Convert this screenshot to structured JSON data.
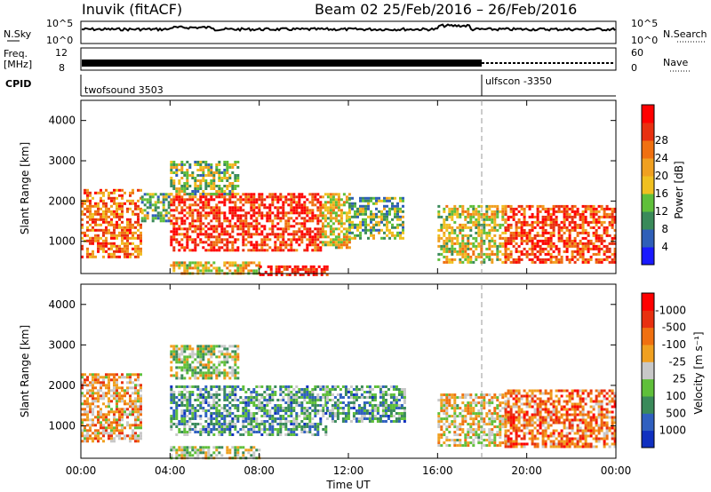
{
  "header": {
    "station": "Inuvik (fitACF)",
    "beam_date": "Beam 02   25/Feb/2016 – 26/Feb/2016"
  },
  "top_panels": {
    "noise": {
      "left_label": "N.Sky",
      "left_ticks": [
        "10^5",
        "10^0"
      ],
      "right_ticks": [
        "10^5",
        "10^0"
      ],
      "right_label": "N.Search"
    },
    "freq": {
      "left_label_line1": "Freq.",
      "left_label_line2": "[MHz]",
      "left_ticks": [
        "12",
        "8"
      ],
      "right_ticks": [
        "60",
        "0"
      ],
      "right_label": "Nave"
    },
    "cpid": {
      "label": "CPID",
      "programs": [
        {
          "name": "twofsound 3503",
          "start_hour": 0
        },
        {
          "name": "ulfscon -3350",
          "start_hour": 18
        }
      ]
    }
  },
  "axes": {
    "x_ticks": [
      "00:00",
      "04:00",
      "08:00",
      "12:00",
      "16:00",
      "20:00",
      "00:00"
    ],
    "x_tick_hours": [
      0,
      4,
      8,
      12,
      16,
      20,
      24
    ],
    "xlabel": "Time UT",
    "y_ticks": [
      "1000",
      "2000",
      "3000",
      "4000"
    ],
    "y_tick_values": [
      1000,
      2000,
      3000,
      4000
    ],
    "ylabel": "Slant Range [km]",
    "ylim": [
      200,
      4500
    ],
    "xlim_hours": [
      0,
      24
    ]
  },
  "chart_data": [
    {
      "type": "heatmap",
      "panel": "power",
      "ylabel": "Slant Range [km]",
      "colorbar_label": "Power [dB]",
      "colorbar_ticks": [
        "4",
        "8",
        "12",
        "16",
        "20",
        "24",
        "28"
      ],
      "colorbar_colors": [
        "#1a1aff",
        "#2f5fb8",
        "#3a8a5a",
        "#5fbf3a",
        "#f0c020",
        "#f0a020",
        "#f07010",
        "#e83010",
        "#ff0000"
      ],
      "regions": [
        {
          "t0": 0.0,
          "t1": 2.7,
          "r0": 600,
          "r1": 2300,
          "level": 0.75
        },
        {
          "t0": 2.7,
          "t1": 4.0,
          "r0": 1500,
          "r1": 2200,
          "level": 0.35
        },
        {
          "t0": 4.0,
          "t1": 10.8,
          "r0": 750,
          "r1": 2200,
          "level": 0.9
        },
        {
          "t0": 4.0,
          "t1": 7.0,
          "r0": 2200,
          "r1": 3000,
          "level": 0.4
        },
        {
          "t0": 10.8,
          "t1": 12.0,
          "r0": 850,
          "r1": 2200,
          "level": 0.55
        },
        {
          "t0": 12.0,
          "t1": 14.5,
          "r0": 1100,
          "r1": 2100,
          "level": 0.35
        },
        {
          "t0": 16.0,
          "t1": 19.0,
          "r0": 500,
          "r1": 1900,
          "level": 0.5
        },
        {
          "t0": 19.0,
          "t1": 24.0,
          "r0": 500,
          "r1": 1900,
          "level": 0.85
        },
        {
          "t0": 4.0,
          "t1": 8.0,
          "r0": 200,
          "r1": 500,
          "level": 0.55
        },
        {
          "t0": 8.0,
          "t1": 11.0,
          "r0": 200,
          "r1": 400,
          "level": 0.95
        }
      ]
    },
    {
      "type": "heatmap",
      "panel": "velocity",
      "ylabel": "Slant Range [km]",
      "colorbar_label": "Velocity [m s⁻¹]",
      "colorbar_ticks": [
        "1000",
        "500",
        "100",
        "25",
        "-25",
        "-100",
        "-500",
        "-1000"
      ],
      "colorbar_colors": [
        "#1030c0",
        "#3060c0",
        "#3a8a5a",
        "#5fbf3a",
        "#c8c8c8",
        "#f0a020",
        "#f07010",
        "#e83010",
        "#ff0000"
      ],
      "regions": [
        {
          "t0": 0.0,
          "t1": 2.7,
          "r0": 600,
          "r1": 2300,
          "level": 0.65
        },
        {
          "t0": 4.0,
          "t1": 11.0,
          "r0": 750,
          "r1": 2000,
          "level": 0.3
        },
        {
          "t0": 4.0,
          "t1": 7.0,
          "r0": 2200,
          "r1": 3000,
          "level": 0.45
        },
        {
          "t0": 11.0,
          "t1": 14.5,
          "r0": 1100,
          "r1": 2000,
          "level": 0.3
        },
        {
          "t0": 16.0,
          "t1": 19.0,
          "r0": 500,
          "r1": 1800,
          "level": 0.55
        },
        {
          "t0": 19.0,
          "t1": 24.0,
          "r0": 500,
          "r1": 1900,
          "level": 0.75
        },
        {
          "t0": 4.0,
          "t1": 8.0,
          "r0": 200,
          "r1": 500,
          "level": 0.45
        }
      ]
    }
  ]
}
